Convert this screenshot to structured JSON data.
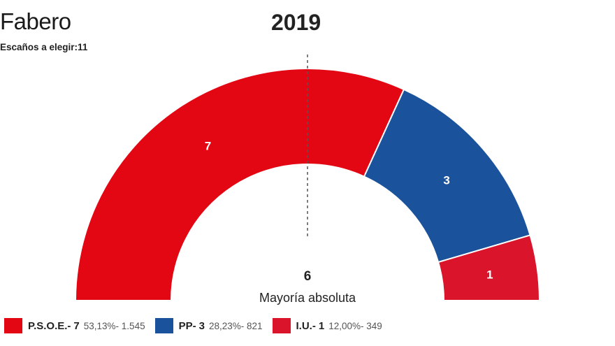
{
  "header": {
    "title": "Fabero",
    "subtitle": "Escaños a elegir:11",
    "year": "2019"
  },
  "majority": {
    "value": "6",
    "label": "Mayoría absoluta"
  },
  "legend": [
    {
      "name": "P.S.O.E.",
      "seats": "7",
      "stat": "53,13%- 1.545",
      "color": "#e30613"
    },
    {
      "name": "PP",
      "seats": "3",
      "stat": "28,23%- 821",
      "color": "#1a539b"
    },
    {
      "name": "I.U.",
      "seats": "1",
      "stat": "12,00%- 349",
      "color": "#d9142b"
    }
  ],
  "chart_data": {
    "type": "pie",
    "variant": "parliament-semicircle",
    "total_seats": 11,
    "majority_seats": 6,
    "series": [
      {
        "name": "P.S.O.E.",
        "seats": 7,
        "percent": 53.13,
        "votes": 1545,
        "color": "#e30613"
      },
      {
        "name": "PP",
        "seats": 3,
        "percent": 28.23,
        "votes": 821,
        "color": "#1a539b"
      },
      {
        "name": "I.U.",
        "seats": 1,
        "percent": 12.0,
        "votes": 349,
        "color": "#d9142b"
      }
    ]
  }
}
